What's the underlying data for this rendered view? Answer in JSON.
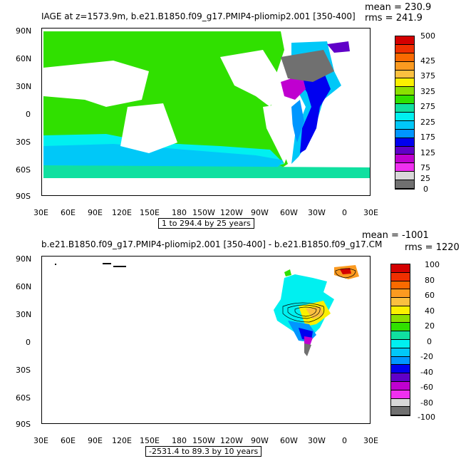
{
  "panel1": {
    "title": "IAGE at z=1573.9m, b.e21.B1850.f09_g17.PMIP4-pliomip2.001 [350-400]",
    "mean": "mean = 230.9",
    "rms": "rms = 241.9",
    "info": "1 to 294.4 by 25 years",
    "lat_labels": [
      "90N",
      "60N",
      "30N",
      "0",
      "30S",
      "60S",
      "90S"
    ],
    "lon_labels": [
      "30E",
      "60E",
      "90E",
      "120E",
      "150E",
      "180",
      "150W",
      "120W",
      "90W",
      "60W",
      "30W",
      "0",
      "30E"
    ],
    "colorbar": {
      "labels": [
        "500",
        "425",
        "375",
        "325",
        "275",
        "225",
        "175",
        "125",
        "75",
        "25",
        "0"
      ],
      "colors": [
        "#d40000",
        "#f03000",
        "#fa6a00",
        "#fb9a20",
        "#fbc040",
        "#fbf000",
        "#8be000",
        "#30e000",
        "#10e0a0",
        "#00f0f0",
        "#00c8f8",
        "#0096ff",
        "#0000f0",
        "#6000c8",
        "#c000d0",
        "#f030f0",
        "#d8d8d8",
        "#707070"
      ]
    }
  },
  "panel2": {
    "title": "b.e21.B1850.f09_g17.PMIP4-pliomip2.001 [350-400] - b.e21.B1850.f09_g17.CM",
    "mean": "mean = -1001",
    "rms": "rms = 1220",
    "info": "-2531.4 to 89.3 by 10 years",
    "lat_labels": [
      "90N",
      "60N",
      "30N",
      "0",
      "30S",
      "60S",
      "90S"
    ],
    "lon_labels": [
      "30E",
      "60E",
      "90E",
      "120E",
      "150E",
      "180",
      "150W",
      "120W",
      "90W",
      "60W",
      "30W",
      "0",
      "30E"
    ],
    "colorbar": {
      "labels": [
        "100",
        "80",
        "60",
        "40",
        "20",
        "0",
        "-20",
        "-40",
        "-60",
        "-80",
        "-100"
      ],
      "colors": [
        "#d40000",
        "#f03000",
        "#fa6a00",
        "#fb9a20",
        "#fbc040",
        "#fbf000",
        "#8be000",
        "#30e000",
        "#10e0a0",
        "#00f0f0",
        "#00c8f8",
        "#0096ff",
        "#0000f0",
        "#6000c8",
        "#c000d0",
        "#f030f0",
        "#d8d8d8",
        "#707070"
      ]
    }
  }
}
